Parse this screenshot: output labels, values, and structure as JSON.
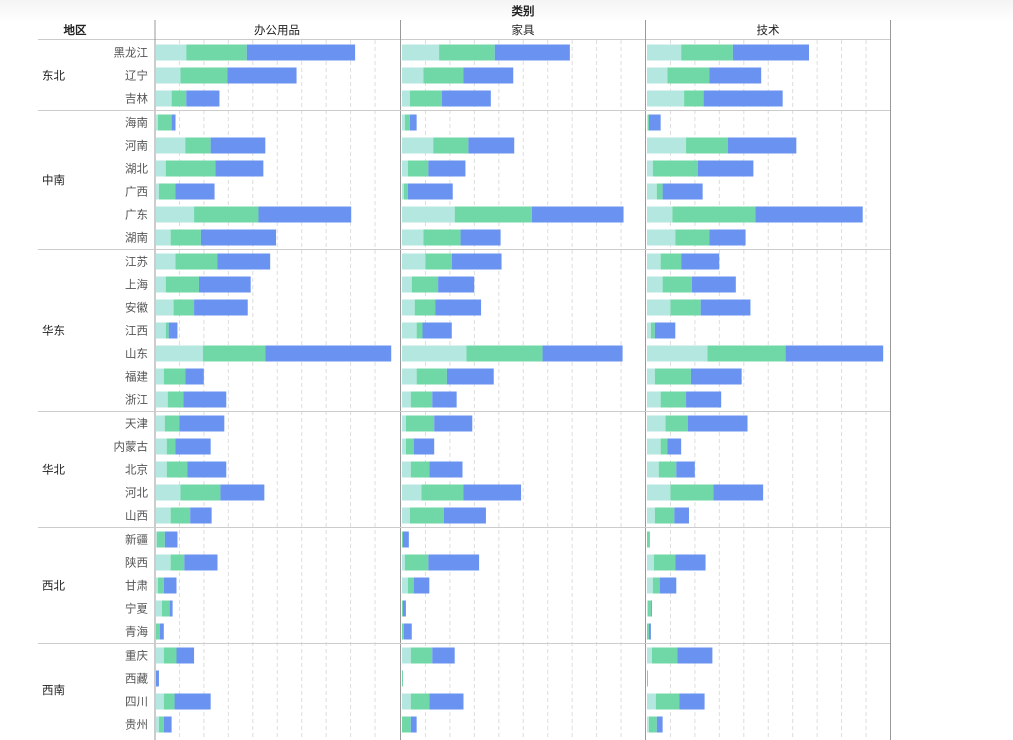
{
  "chart_data": {
    "type": "bar",
    "orientation": "horizontal-stacked",
    "title": "类别",
    "row_header": "地区",
    "panels": [
      "办公用品",
      "家具",
      "技术"
    ],
    "colors": [
      "#b5e7e1",
      "#70d8a6",
      "#6a93f1"
    ],
    "xlim": [
      0,
      250
    ],
    "grid": true,
    "groups": [
      {
        "region": "东北",
        "rows": [
          {
            "name": "黑龙江",
            "values": [
              [
                31,
                62,
                111
              ],
              [
                38,
                57,
                77
              ],
              [
                35,
                53,
                78
              ]
            ]
          },
          {
            "name": "辽宁",
            "values": [
              [
                25,
                48,
                71
              ],
              [
                22,
                41,
                51
              ],
              [
                21,
                43,
                53
              ]
            ]
          },
          {
            "name": "吉林",
            "values": [
              [
                16,
                15,
                34
              ],
              [
                8,
                33,
                50
              ],
              [
                38,
                20,
                81
              ]
            ]
          }
        ]
      },
      {
        "region": "中南",
        "rows": [
          {
            "name": "海南",
            "values": [
              [
                2,
                14,
                4
              ],
              [
                3,
                5,
                7
              ],
              [
                1,
                1,
                12
              ]
            ]
          },
          {
            "name": "河南",
            "values": [
              [
                30,
                26,
                56
              ],
              [
                32,
                36,
                47
              ],
              [
                40,
                43,
                70
              ]
            ]
          },
          {
            "name": "湖北",
            "values": [
              [
                10,
                51,
                49
              ],
              [
                6,
                21,
                38
              ],
              [
                6,
                46,
                57
              ]
            ]
          },
          {
            "name": "广西",
            "values": [
              [
                3,
                17,
                40
              ],
              [
                2,
                4,
                46
              ],
              [
                10,
                6,
                41
              ]
            ]
          },
          {
            "name": "广东",
            "values": [
              [
                39,
                66,
                95
              ],
              [
                54,
                79,
                94
              ],
              [
                26,
                85,
                110
              ]
            ]
          },
          {
            "name": "湖南",
            "values": [
              [
                15,
                31,
                77
              ],
              [
                22,
                38,
                41
              ],
              [
                29,
                35,
                37
              ]
            ]
          }
        ]
      },
      {
        "region": "华东",
        "rows": [
          {
            "name": "江苏",
            "values": [
              [
                20,
                43,
                54
              ],
              [
                24,
                27,
                51
              ],
              [
                14,
                21,
                39
              ]
            ]
          },
          {
            "name": "上海",
            "values": [
              [
                10,
                34,
                53
              ],
              [
                10,
                27,
                37
              ],
              [
                16,
                30,
                45
              ]
            ]
          },
          {
            "name": "安徽",
            "values": [
              [
                18,
                21,
                55
              ],
              [
                13,
                21,
                47
              ],
              [
                24,
                31,
                51
              ]
            ]
          },
          {
            "name": "江西",
            "values": [
              [
                10,
                3,
                9
              ],
              [
                15,
                6,
                30
              ],
              [
                4,
                4,
                21
              ]
            ]
          },
          {
            "name": "山东",
            "values": [
              [
                48,
                64,
                129
              ],
              [
                66,
                78,
                82
              ],
              [
                62,
                80,
                100
              ]
            ]
          },
          {
            "name": "福建",
            "values": [
              [
                8,
                22,
                19
              ],
              [
                15,
                31,
                48
              ],
              [
                8,
                37,
                52
              ]
            ]
          },
          {
            "name": "浙江",
            "values": [
              [
                12,
                16,
                44
              ],
              [
                9,
                22,
                25
              ],
              [
                14,
                26,
                36
              ]
            ]
          }
        ]
      },
      {
        "region": "华北",
        "rows": [
          {
            "name": "天津",
            "values": [
              [
                9,
                15,
                46
              ],
              [
                4,
                29,
                39
              ],
              [
                19,
                23,
                61
              ]
            ]
          },
          {
            "name": "内蒙古",
            "values": [
              [
                11,
                9,
                36
              ],
              [
                4,
                8,
                21
              ],
              [
                14,
                7,
                14
              ]
            ]
          },
          {
            "name": "北京",
            "values": [
              [
                11,
                21,
                40
              ],
              [
                9,
                19,
                34
              ],
              [
                12,
                18,
                19
              ]
            ]
          },
          {
            "name": "河北",
            "values": [
              [
                25,
                41,
                45
              ],
              [
                20,
                43,
                59
              ],
              [
                24,
                44,
                51
              ]
            ]
          },
          {
            "name": "山西",
            "values": [
              [
                15,
                20,
                22
              ],
              [
                8,
                35,
                43
              ],
              [
                8,
                20,
                15
              ]
            ]
          }
        ]
      },
      {
        "region": "西北",
        "rows": [
          {
            "name": "新疆",
            "values": [
              [
                1,
                8,
                13
              ],
              [
                0,
                1,
                6
              ],
              [
                0,
                3,
                0
              ]
            ]
          },
          {
            "name": "陕西",
            "values": [
              [
                15,
                14,
                34
              ],
              [
                3,
                24,
                52
              ],
              [
                7,
                22,
                31
              ]
            ]
          },
          {
            "name": "甘肃",
            "values": [
              [
                2,
                6,
                13
              ],
              [
                6,
                6,
                16
              ],
              [
                6,
                7,
                17
              ]
            ]
          },
          {
            "name": "宁夏",
            "values": [
              [
                6,
                8,
                3
              ],
              [
                0,
                1,
                3
              ],
              [
                1,
                3,
                1
              ]
            ]
          },
          {
            "name": "青海",
            "values": [
              [
                0,
                4,
                4
              ],
              [
                0,
                2,
                8
              ],
              [
                0,
                2,
                2
              ]
            ]
          }
        ]
      },
      {
        "region": "西南",
        "rows": [
          {
            "name": "重庆",
            "values": [
              [
                8,
                13,
                18
              ],
              [
                9,
                22,
                23
              ],
              [
                5,
                26,
                36
              ]
            ]
          },
          {
            "name": "西藏",
            "values": [
              [
                0,
                0,
                3
              ],
              [
                0,
                1,
                0
              ],
              [
                0,
                1,
                0
              ]
            ]
          },
          {
            "name": "四川",
            "values": [
              [
                8,
                11,
                37
              ],
              [
                9,
                19,
                35
              ],
              [
                9,
                24,
                26
              ]
            ]
          },
          {
            "name": "贵州",
            "values": [
              [
                3,
                5,
                8
              ],
              [
                0,
                9,
                6
              ],
              [
                2,
                8,
                6
              ]
            ]
          }
        ]
      }
    ]
  }
}
